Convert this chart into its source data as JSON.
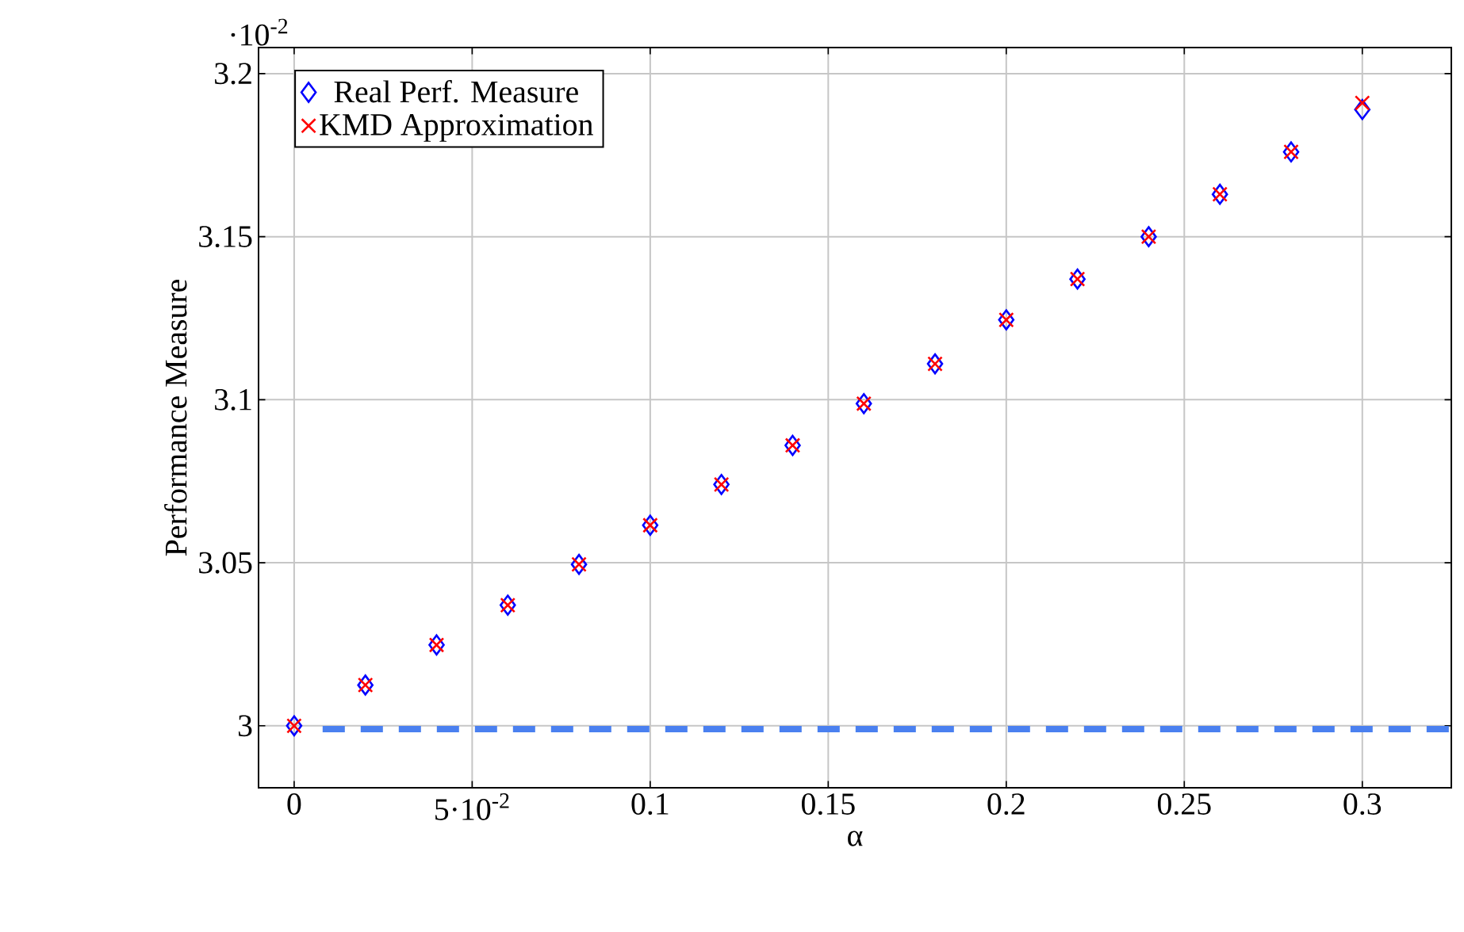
{
  "chart_data": {
    "type": "scatter",
    "xlabel": "α",
    "ylabel": "Performance Measure",
    "x": [
      0,
      0.02,
      0.04,
      0.06,
      0.08,
      0.1,
      0.12,
      0.14,
      0.16,
      0.18,
      0.2,
      0.22,
      0.24,
      0.26,
      0.28,
      0.3
    ],
    "series": [
      {
        "name": "Real Perf. Measure",
        "color": "#0000ff",
        "marker": "diamond",
        "values": [
          3.0,
          3.0125,
          3.0248,
          3.037,
          3.0495,
          3.0615,
          3.074,
          3.086,
          3.0988,
          3.111,
          3.1245,
          3.137,
          3.15,
          3.163,
          3.176,
          3.189
        ]
      },
      {
        "name": "KMD Approximation",
        "color": "#ff0000",
        "marker": "cross",
        "values": [
          3.0,
          3.0125,
          3.0248,
          3.037,
          3.0495,
          3.0615,
          3.074,
          3.086,
          3.0988,
          3.111,
          3.1245,
          3.137,
          3.15,
          3.163,
          3.176,
          3.191
        ]
      }
    ],
    "xlim": [
      -0.01,
      0.325
    ],
    "ylim": [
      2.981,
      3.208
    ],
    "xticks": [
      0,
      {
        "value": 0.05,
        "label": "5·10$^{-2}$"
      },
      0.1,
      0.15,
      0.2,
      0.25,
      0.3
    ],
    "yticks": [
      3,
      3.05,
      3.1,
      3.15,
      3.2
    ],
    "annotations": [
      "·10$^{-2}$"
    ],
    "ref_lines": [
      {
        "axis": "y",
        "value": 2.999,
        "color": "#4a80f0",
        "line_style": "dashed"
      }
    ],
    "grid": true,
    "legend": "top left"
  }
}
